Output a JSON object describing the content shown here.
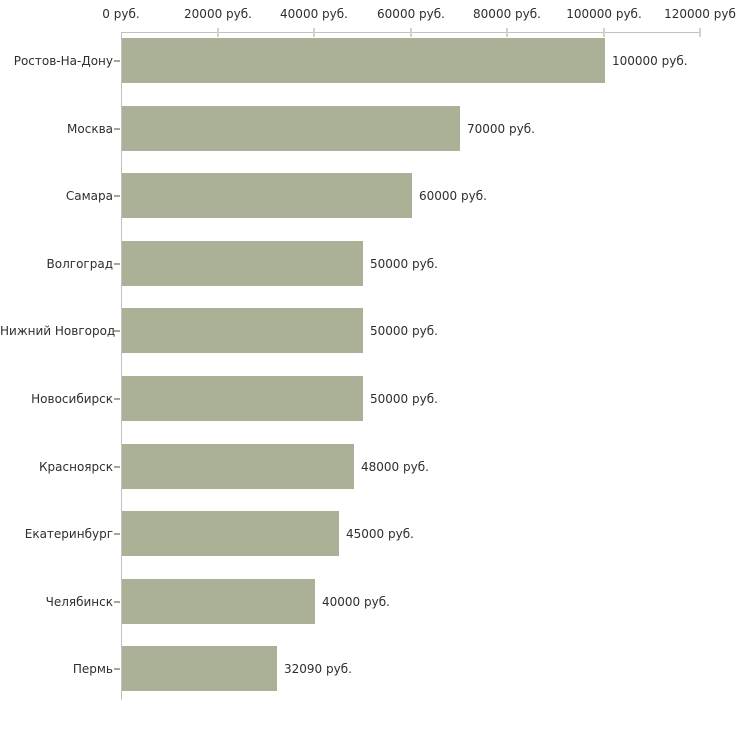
{
  "chart_data": {
    "type": "bar",
    "orientation": "horizontal",
    "title": "",
    "categories": [
      "Ростов-На-Дону",
      "Москва",
      "Самара",
      "Волгоград",
      "Нижний Новгород",
      "Новосибирск",
      "Красноярск",
      "Екатеринбург",
      "Челябинск",
      "Пермь"
    ],
    "values": [
      100000,
      70000,
      60000,
      50000,
      50000,
      50000,
      48000,
      45000,
      40000,
      32090
    ],
    "value_labels": [
      "100000 руб.",
      "70000 руб.",
      "60000 руб.",
      "50000 руб.",
      "50000 руб.",
      "50000 руб.",
      "48000 руб.",
      "45000 руб.",
      "40000 руб.",
      "32090 руб."
    ],
    "x_axis": {
      "position": "top",
      "min": 0,
      "max": 120000,
      "ticks": [
        0,
        20000,
        40000,
        60000,
        80000,
        100000,
        120000
      ],
      "tick_labels": [
        "0 руб.",
        "20000 руб.",
        "40000 руб.",
        "60000 руб.",
        "80000 руб.",
        "100000 руб.",
        "120000 руб"
      ]
    },
    "legend": "none",
    "grid": false,
    "colors": {
      "bar": "#aab196",
      "axis_line": "#c1c1c1",
      "axis_tick": "#d2d6b9",
      "category_tick": "#a3a795",
      "text": "#2e2e2e",
      "background": "#ffffff"
    }
  }
}
